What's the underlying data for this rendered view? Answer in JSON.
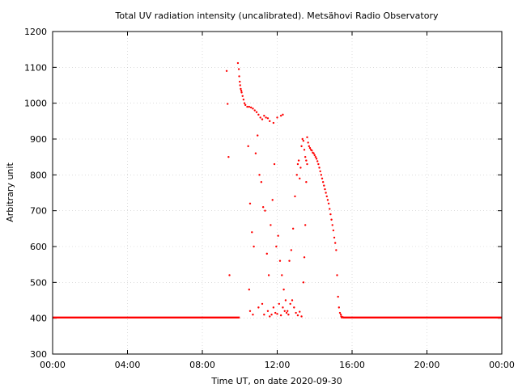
{
  "chart_data": {
    "type": "scatter",
    "title": "Total UV radiation intensity (uncalibrated). Metsähovi Radio Observatory",
    "xlabel": "Time UT, on date 2020-09-30",
    "ylabel": "Arbitrary unit",
    "xlim": [
      0,
      24
    ],
    "ylim": [
      300,
      1200
    ],
    "x_unit": "hours UT",
    "xticks": [
      {
        "value": 0,
        "label": "00:00"
      },
      {
        "value": 4,
        "label": "04:00"
      },
      {
        "value": 8,
        "label": "08:00"
      },
      {
        "value": 12,
        "label": "12:00"
      },
      {
        "value": 16,
        "label": "16:00"
      },
      {
        "value": 20,
        "label": "20:00"
      },
      {
        "value": 24,
        "label": "00:00"
      }
    ],
    "yticks": [
      {
        "value": 300,
        "label": "300"
      },
      {
        "value": 400,
        "label": "400"
      },
      {
        "value": 500,
        "label": "500"
      },
      {
        "value": 600,
        "label": "600"
      },
      {
        "value": 700,
        "label": "700"
      },
      {
        "value": 800,
        "label": "800"
      },
      {
        "value": 900,
        "label": "900"
      },
      {
        "value": 1000,
        "label": "1000"
      },
      {
        "value": 1100,
        "label": "1100"
      },
      {
        "value": 1200,
        "label": "1200"
      }
    ],
    "grid": true,
    "marker_color": "#ff0000",
    "series": [
      {
        "x": [
          9.3,
          9.35,
          9.4,
          9.45,
          9.9,
          9.95,
          9.97,
          10.0,
          10.02,
          10.05,
          10.08,
          10.1,
          10.15,
          10.2,
          10.25,
          10.3,
          10.4,
          10.5,
          10.6,
          10.7,
          10.8,
          10.9,
          11.0,
          11.1,
          11.2,
          11.3,
          11.4,
          11.5,
          11.6,
          11.8,
          12.0,
          12.2,
          12.3,
          10.45,
          10.55,
          10.65,
          10.75,
          10.85,
          10.95,
          11.05,
          11.15,
          11.25,
          11.35,
          11.45,
          11.55,
          11.65,
          11.75,
          11.85,
          11.95,
          12.05,
          12.15,
          12.25,
          12.35,
          12.45,
          12.55,
          12.65,
          12.75,
          12.85,
          12.95,
          13.05,
          13.1,
          13.15,
          13.2,
          13.25,
          13.3,
          13.35,
          13.4,
          13.45,
          13.5,
          13.55,
          13.6,
          10.5,
          10.55,
          10.7,
          11.0,
          11.2,
          11.3,
          11.5,
          11.6,
          11.7,
          11.8,
          11.9,
          12.0,
          12.1,
          12.2,
          12.3,
          12.4,
          12.5,
          12.6,
          12.7,
          12.8,
          12.9,
          13.0,
          13.1,
          13.2,
          13.3,
          13.4,
          13.45,
          13.5,
          13.55,
          13.6,
          13.65,
          13.7,
          13.75,
          13.8,
          13.85,
          13.9,
          13.95,
          14.0,
          14.05,
          14.1,
          14.15,
          14.2,
          14.25,
          14.3,
          14.35,
          14.4,
          14.45,
          14.5,
          14.55,
          14.6,
          14.65,
          14.7,
          14.75,
          14.8,
          14.85,
          14.9,
          14.95,
          15.0,
          15.05,
          15.1,
          15.15,
          15.2,
          15.25,
          15.3,
          15.35,
          15.4,
          15.42,
          15.45,
          15.5
        ],
        "y": [
          1090,
          998,
          850,
          520,
          1112,
          1095,
          1075,
          1060,
          1050,
          1040,
          1035,
          1030,
          1020,
          1010,
          1000,
          995,
          990,
          990,
          988,
          985,
          980,
          975,
          968,
          960,
          955,
          965,
          960,
          958,
          950,
          945,
          960,
          965,
          968,
          880,
          720,
          640,
          600,
          860,
          910,
          800,
          780,
          710,
          700,
          580,
          520,
          660,
          730,
          830,
          600,
          630,
          560,
          520,
          480,
          450,
          420,
          560,
          590,
          650,
          740,
          800,
          830,
          840,
          790,
          820,
          880,
          900,
          895,
          870,
          850,
          840,
          830,
          480,
          420,
          410,
          430,
          440,
          410,
          420,
          405,
          410,
          430,
          415,
          412,
          440,
          408,
          430,
          420,
          415,
          410,
          440,
          450,
          430,
          415,
          408,
          418,
          405,
          500,
          570,
          660,
          780,
          905,
          890,
          880,
          875,
          870,
          868,
          862,
          860,
          855,
          850,
          845,
          838,
          830,
          820,
          810,
          800,
          790,
          780,
          770,
          760,
          750,
          740,
          730,
          720,
          705,
          690,
          675,
          660,
          645,
          625,
          610,
          590,
          520,
          460,
          430,
          415,
          410,
          405,
          402,
          403
        ]
      }
    ],
    "baseline": {
      "y": 402,
      "ranges": [
        [
          0,
          10.0
        ],
        [
          15.5,
          24
        ]
      ]
    }
  }
}
